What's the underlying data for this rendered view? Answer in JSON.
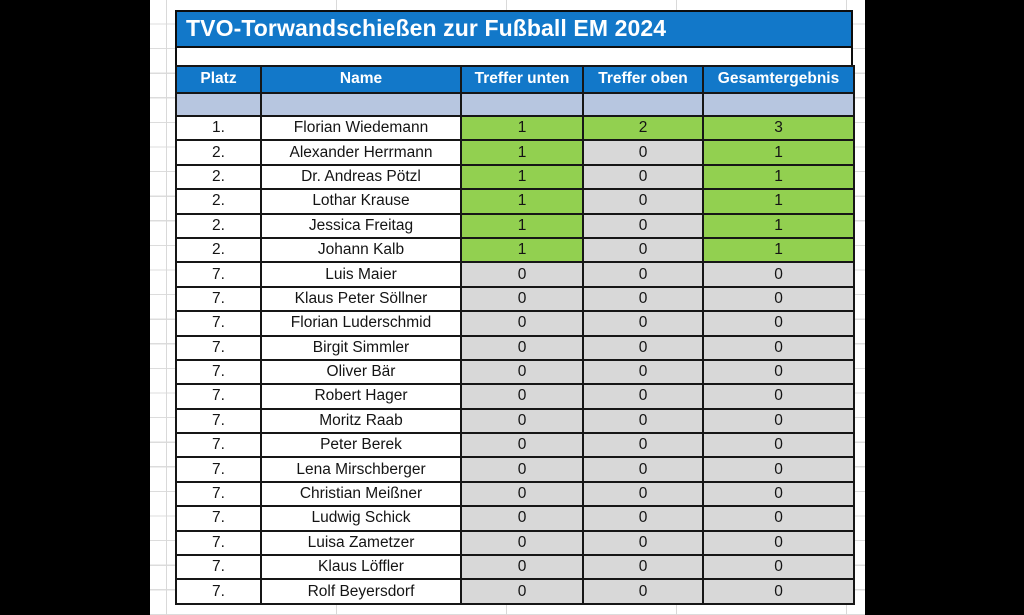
{
  "title": "TVO-Torwandschießen zur Fußball EM 2024",
  "table": {
    "columns": [
      "Platz",
      "Name",
      "Treffer unten",
      "Treffer oben",
      "Gesamtergebnis"
    ],
    "rows": [
      {
        "platz": "1.",
        "name": "Florian Wiedemann",
        "unten": 1,
        "oben": 2,
        "gesamt": 3
      },
      {
        "platz": "2.",
        "name": "Alexander Herrmann",
        "unten": 1,
        "oben": 0,
        "gesamt": 1
      },
      {
        "platz": "2.",
        "name": "Dr. Andreas Pötzl",
        "unten": 1,
        "oben": 0,
        "gesamt": 1
      },
      {
        "platz": "2.",
        "name": "Lothar Krause",
        "unten": 1,
        "oben": 0,
        "gesamt": 1
      },
      {
        "platz": "2.",
        "name": "Jessica Freitag",
        "unten": 1,
        "oben": 0,
        "gesamt": 1
      },
      {
        "platz": "2.",
        "name": "Johann Kalb",
        "unten": 1,
        "oben": 0,
        "gesamt": 1
      },
      {
        "platz": "7.",
        "name": "Luis Maier",
        "unten": 0,
        "oben": 0,
        "gesamt": 0
      },
      {
        "platz": "7.",
        "name": "Klaus Peter Söllner",
        "unten": 0,
        "oben": 0,
        "gesamt": 0
      },
      {
        "platz": "7.",
        "name": "Florian Luderschmid",
        "unten": 0,
        "oben": 0,
        "gesamt": 0
      },
      {
        "platz": "7.",
        "name": "Birgit Simmler",
        "unten": 0,
        "oben": 0,
        "gesamt": 0
      },
      {
        "platz": "7.",
        "name": "Oliver Bär",
        "unten": 0,
        "oben": 0,
        "gesamt": 0
      },
      {
        "platz": "7.",
        "name": "Robert Hager",
        "unten": 0,
        "oben": 0,
        "gesamt": 0
      },
      {
        "platz": "7.",
        "name": "Moritz Raab",
        "unten": 0,
        "oben": 0,
        "gesamt": 0
      },
      {
        "platz": "7.",
        "name": "Peter Berek",
        "unten": 0,
        "oben": 0,
        "gesamt": 0
      },
      {
        "platz": "7.",
        "name": "Lena Mirschberger",
        "unten": 0,
        "oben": 0,
        "gesamt": 0
      },
      {
        "platz": "7.",
        "name": "Christian Meißner",
        "unten": 0,
        "oben": 0,
        "gesamt": 0
      },
      {
        "platz": "7.",
        "name": "Ludwig Schick",
        "unten": 0,
        "oben": 0,
        "gesamt": 0
      },
      {
        "platz": "7.",
        "name": "Luisa Zametzer",
        "unten": 0,
        "oben": 0,
        "gesamt": 0
      },
      {
        "platz": "7.",
        "name": "Klaus Löffler",
        "unten": 0,
        "oben": 0,
        "gesamt": 0
      },
      {
        "platz": "7.",
        "name": "Rolf Beyersdorf",
        "unten": 0,
        "oben": 0,
        "gesamt": 0
      }
    ]
  },
  "colors": {
    "header-blue": "#1278C9",
    "hit-green": "#92D050",
    "zero-gray": "#D8D8D8",
    "spacer-blue": "#B7C6E0"
  }
}
